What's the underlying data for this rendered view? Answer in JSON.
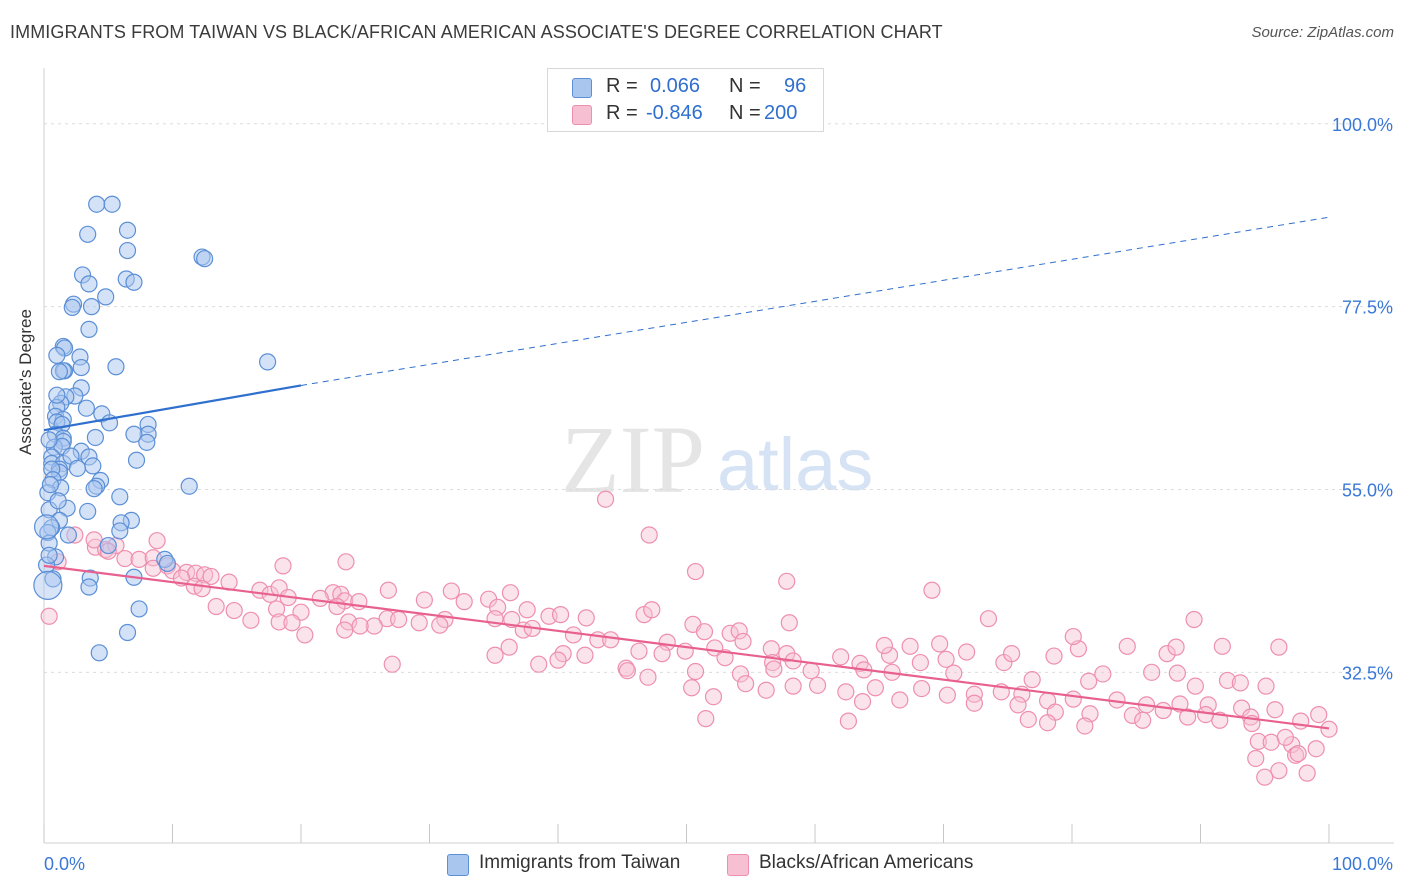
{
  "title": "IMMIGRANTS FROM TAIWAN VS BLACK/AFRICAN AMERICAN ASSOCIATE'S DEGREE CORRELATION CHART",
  "source": "Source: ZipAtlas.com",
  "watermark": {
    "zip": "ZIP",
    "atlas": "atlas"
  },
  "legend": {
    "rows": [
      {
        "r_label": "R =",
        "r_value": "0.066",
        "n_label": "N =",
        "n_value": "96"
      },
      {
        "r_label": "R =",
        "r_value": "-0.846",
        "n_label": "N =",
        "n_value": "200"
      }
    ]
  },
  "bottom_legend": {
    "taiwan": "Immigrants from Taiwan",
    "black": "Blacks/African Americans"
  },
  "colors": {
    "taiwan_fill": "#a9c6ef",
    "taiwan_stroke": "#5b8fd6",
    "taiwan_line": "#2f6fce",
    "black_fill": "#f7c0d2",
    "black_stroke": "#ee8fae",
    "black_line": "#e8608f",
    "axis_label": "#3a78d6",
    "grid": "#dcdcdc"
  },
  "chart_data": {
    "type": "scatter",
    "title": "IMMIGRANTS FROM TAIWAN VS BLACK/AFRICAN AMERICAN ASSOCIATE'S DEGREE CORRELATION CHART",
    "xlabel": "",
    "ylabel": "Associate's Degree",
    "xlim": [
      0,
      100
    ],
    "ylim": [
      11.5,
      106
    ],
    "x_tick_labels": [
      "0.0%",
      "100.0%"
    ],
    "y_ticks": [
      32.5,
      55.0,
      77.5,
      100.0
    ],
    "y_tick_labels": [
      "32.5%",
      "55.0%",
      "77.5%",
      "100.0%"
    ],
    "grid": true,
    "series": [
      {
        "name": "Immigrants from Taiwan",
        "R": 0.066,
        "N": 96,
        "trend": {
          "x0": 0,
          "y0": 62.3,
          "x1": 20,
          "y1": 67.8,
          "dash_x1": 100,
          "dash_y1": 88.5
        },
        "points": [
          [
            4.1,
            90.1
          ],
          [
            5.3,
            90.1
          ],
          [
            3.4,
            86.4
          ],
          [
            6.5,
            86.9
          ],
          [
            6.5,
            84.4
          ],
          [
            12.3,
            83.6
          ],
          [
            12.5,
            83.4
          ],
          [
            3.0,
            81.4
          ],
          [
            6.4,
            80.9
          ],
          [
            7.0,
            80.5
          ],
          [
            3.5,
            80.3
          ],
          [
            4.8,
            78.7
          ],
          [
            2.3,
            77.8
          ],
          [
            2.2,
            77.4
          ],
          [
            3.7,
            77.5
          ],
          [
            3.5,
            74.7
          ],
          [
            17.4,
            70.7
          ],
          [
            1.5,
            72.6
          ],
          [
            1.6,
            72.4
          ],
          [
            2.8,
            71.3
          ],
          [
            1.0,
            71.5
          ],
          [
            2.9,
            70.0
          ],
          [
            5.6,
            70.1
          ],
          [
            1.6,
            69.6
          ],
          [
            1.5,
            69.6
          ],
          [
            1.2,
            69.5
          ],
          [
            2.9,
            67.5
          ],
          [
            2.4,
            66.5
          ],
          [
            1.7,
            66.4
          ],
          [
            1.3,
            65.6
          ],
          [
            1.0,
            65.1
          ],
          [
            1.0,
            66.6
          ],
          [
            3.3,
            65.0
          ],
          [
            0.9,
            64.0
          ],
          [
            4.5,
            64.3
          ],
          [
            1.5,
            63.6
          ],
          [
            1.0,
            63.3
          ],
          [
            1.4,
            63.0
          ],
          [
            5.1,
            63.2
          ],
          [
            8.1,
            63.0
          ],
          [
            8.1,
            61.8
          ],
          [
            7.0,
            61.8
          ],
          [
            0.9,
            61.8
          ],
          [
            1.5,
            61.3
          ],
          [
            1.5,
            60.9
          ],
          [
            0.8,
            60.2
          ],
          [
            1.4,
            60.3
          ],
          [
            2.9,
            59.7
          ],
          [
            3.5,
            59.0
          ],
          [
            0.6,
            59.0
          ],
          [
            7.2,
            58.6
          ],
          [
            0.6,
            58.2
          ],
          [
            1.5,
            58.2
          ],
          [
            1.2,
            57.5
          ],
          [
            1.2,
            57.1
          ],
          [
            0.6,
            57.5
          ],
          [
            3.8,
            57.9
          ],
          [
            0.7,
            56.2
          ],
          [
            4.4,
            56.1
          ],
          [
            4.1,
            55.4
          ],
          [
            1.3,
            55.2
          ],
          [
            11.3,
            55.4
          ],
          [
            3.9,
            55.1
          ],
          [
            1.8,
            52.7
          ],
          [
            0.4,
            52.5
          ],
          [
            3.4,
            52.3
          ],
          [
            6.8,
            51.2
          ],
          [
            1.2,
            51.2
          ],
          [
            6.0,
            50.9
          ],
          [
            0.6,
            50.3
          ],
          [
            5.9,
            49.9
          ],
          [
            0.3,
            49.7
          ],
          [
            1.9,
            49.4
          ],
          [
            5.0,
            48.1
          ],
          [
            0.4,
            48.4
          ],
          [
            9.4,
            46.4
          ],
          [
            0.9,
            46.7
          ],
          [
            9.6,
            45.9
          ],
          [
            0.2,
            45.7
          ],
          [
            7.0,
            44.2
          ],
          [
            3.6,
            44.1
          ],
          [
            0.7,
            44.0
          ],
          [
            3.5,
            43.0
          ],
          [
            7.4,
            40.3
          ],
          [
            6.5,
            37.4
          ],
          [
            4.3,
            34.9
          ],
          [
            0.4,
            46.9
          ],
          [
            0.3,
            54.6
          ],
          [
            0.5,
            55.6
          ],
          [
            2.1,
            59.1
          ],
          [
            4.0,
            61.4
          ],
          [
            2.6,
            57.6
          ],
          [
            1.1,
            53.6
          ],
          [
            5.9,
            54.1
          ],
          [
            8.0,
            60.8
          ],
          [
            0.4,
            61.1
          ]
        ]
      },
      {
        "name": "Blacks/African Americans",
        "R": -0.846,
        "N": 200,
        "trend": {
          "x0": 0,
          "y0": 45.6,
          "x1": 100,
          "y1": 25.6
        },
        "points": [
          [
            1.1,
            46.1
          ],
          [
            4.0,
            47.9
          ],
          [
            4.8,
            47.6
          ],
          [
            5.6,
            48.1
          ],
          [
            3.9,
            48.8
          ],
          [
            2.4,
            49.4
          ],
          [
            8.8,
            48.7
          ],
          [
            5.0,
            47.4
          ],
          [
            6.3,
            46.5
          ],
          [
            7.4,
            46.4
          ],
          [
            8.5,
            46.6
          ],
          [
            9.6,
            45.6
          ],
          [
            8.5,
            45.3
          ],
          [
            10.0,
            45.0
          ],
          [
            11.1,
            44.8
          ],
          [
            11.8,
            44.7
          ],
          [
            10.7,
            44.1
          ],
          [
            12.5,
            44.5
          ],
          [
            13.0,
            44.3
          ],
          [
            14.4,
            43.6
          ],
          [
            18.6,
            45.6
          ],
          [
            23.5,
            46.1
          ],
          [
            11.7,
            43.1
          ],
          [
            12.3,
            42.8
          ],
          [
            16.8,
            42.6
          ],
          [
            17.6,
            42.1
          ],
          [
            18.3,
            42.9
          ],
          [
            22.5,
            42.3
          ],
          [
            23.1,
            42.1
          ],
          [
            26.8,
            42.6
          ],
          [
            19.0,
            41.7
          ],
          [
            21.5,
            41.6
          ],
          [
            23.4,
            41.3
          ],
          [
            24.5,
            41.2
          ],
          [
            31.7,
            42.5
          ],
          [
            36.3,
            42.3
          ],
          [
            34.6,
            41.5
          ],
          [
            13.4,
            40.6
          ],
          [
            14.8,
            40.1
          ],
          [
            18.1,
            40.3
          ],
          [
            20.0,
            39.9
          ],
          [
            22.8,
            40.6
          ],
          [
            29.6,
            41.4
          ],
          [
            32.7,
            41.2
          ],
          [
            35.3,
            40.5
          ],
          [
            37.6,
            40.2
          ],
          [
            0.4,
            39.4
          ],
          [
            16.1,
            38.9
          ],
          [
            18.3,
            38.7
          ],
          [
            19.3,
            38.6
          ],
          [
            23.7,
            38.7
          ],
          [
            26.7,
            39.1
          ],
          [
            25.7,
            38.2
          ],
          [
            27.6,
            39.0
          ],
          [
            29.2,
            38.6
          ],
          [
            31.2,
            39.0
          ],
          [
            35.1,
            39.1
          ],
          [
            36.4,
            39.0
          ],
          [
            39.3,
            39.4
          ],
          [
            40.2,
            39.6
          ],
          [
            42.2,
            39.2
          ],
          [
            46.7,
            39.6
          ],
          [
            47.3,
            40.2
          ],
          [
            50.5,
            38.4
          ],
          [
            20.3,
            37.1
          ],
          [
            23.4,
            37.7
          ],
          [
            24.6,
            38.2
          ],
          [
            30.8,
            38.3
          ],
          [
            37.3,
            37.7
          ],
          [
            38.0,
            37.9
          ],
          [
            41.2,
            37.1
          ],
          [
            43.1,
            36.5
          ],
          [
            44.1,
            36.5
          ],
          [
            48.5,
            36.2
          ],
          [
            51.4,
            37.5
          ],
          [
            53.4,
            37.3
          ],
          [
            54.1,
            37.6
          ],
          [
            58.0,
            38.6
          ],
          [
            52.2,
            35.5
          ],
          [
            54.4,
            36.3
          ],
          [
            56.6,
            35.4
          ],
          [
            57.8,
            34.8
          ],
          [
            62.0,
            34.4
          ],
          [
            67.4,
            35.7
          ],
          [
            69.7,
            36.0
          ],
          [
            70.2,
            34.1
          ],
          [
            35.1,
            34.6
          ],
          [
            36.2,
            35.6
          ],
          [
            40.4,
            34.8
          ],
          [
            42.1,
            34.6
          ],
          [
            46.3,
            35.1
          ],
          [
            48.1,
            34.8
          ],
          [
            49.9,
            35.1
          ],
          [
            53.0,
            34.3
          ],
          [
            56.7,
            33.7
          ],
          [
            58.3,
            33.9
          ],
          [
            63.5,
            33.6
          ],
          [
            65.8,
            34.6
          ],
          [
            68.2,
            33.7
          ],
          [
            71.8,
            35.0
          ],
          [
            74.7,
            33.7
          ],
          [
            75.3,
            34.8
          ],
          [
            78.6,
            34.5
          ],
          [
            80.5,
            35.4
          ],
          [
            84.3,
            35.7
          ],
          [
            87.4,
            34.8
          ],
          [
            91.7,
            35.7
          ],
          [
            96.1,
            35.6
          ],
          [
            27.1,
            33.5
          ],
          [
            38.5,
            33.5
          ],
          [
            40.0,
            34.0
          ],
          [
            45.3,
            33.0
          ],
          [
            45.4,
            32.7
          ],
          [
            50.7,
            32.6
          ],
          [
            54.2,
            32.3
          ],
          [
            56.8,
            32.9
          ],
          [
            59.7,
            32.7
          ],
          [
            63.8,
            32.8
          ],
          [
            66.0,
            32.5
          ],
          [
            70.8,
            32.4
          ],
          [
            76.9,
            31.6
          ],
          [
            81.3,
            31.4
          ],
          [
            82.4,
            32.3
          ],
          [
            86.2,
            32.5
          ],
          [
            88.2,
            32.4
          ],
          [
            89.6,
            30.8
          ],
          [
            92.1,
            31.5
          ],
          [
            93.1,
            31.2
          ],
          [
            95.1,
            30.8
          ],
          [
            47.0,
            31.9
          ],
          [
            50.4,
            30.6
          ],
          [
            54.6,
            31.1
          ],
          [
            56.2,
            30.3
          ],
          [
            60.2,
            30.9
          ],
          [
            62.4,
            30.1
          ],
          [
            64.7,
            30.6
          ],
          [
            68.3,
            30.5
          ],
          [
            70.3,
            29.7
          ],
          [
            72.4,
            29.8
          ],
          [
            74.5,
            30.1
          ],
          [
            76.1,
            29.8
          ],
          [
            78.1,
            29.0
          ],
          [
            80.1,
            29.2
          ],
          [
            83.5,
            29.1
          ],
          [
            85.8,
            28.5
          ],
          [
            88.4,
            28.6
          ],
          [
            90.6,
            28.5
          ],
          [
            93.2,
            28.1
          ],
          [
            95.8,
            27.9
          ],
          [
            99.2,
            27.3
          ],
          [
            52.1,
            29.5
          ],
          [
            58.3,
            30.8
          ],
          [
            63.7,
            28.9
          ],
          [
            66.6,
            29.1
          ],
          [
            72.4,
            28.7
          ],
          [
            75.8,
            28.5
          ],
          [
            78.7,
            27.6
          ],
          [
            81.4,
            27.4
          ],
          [
            84.7,
            27.2
          ],
          [
            87.1,
            27.8
          ],
          [
            90.4,
            27.3
          ],
          [
            91.5,
            26.6
          ],
          [
            93.9,
            27.0
          ],
          [
            97.8,
            26.5
          ],
          [
            100.0,
            25.5
          ],
          [
            51.5,
            26.8
          ],
          [
            62.6,
            26.5
          ],
          [
            76.6,
            26.7
          ],
          [
            78.1,
            26.3
          ],
          [
            81.0,
            25.9
          ],
          [
            85.5,
            26.6
          ],
          [
            89.0,
            27.0
          ],
          [
            94.0,
            26.2
          ],
          [
            97.1,
            23.6
          ],
          [
            99.0,
            23.1
          ],
          [
            94.5,
            24.0
          ],
          [
            95.5,
            23.9
          ],
          [
            96.6,
            24.5
          ],
          [
            97.4,
            22.3
          ],
          [
            94.3,
            21.9
          ],
          [
            97.6,
            22.5
          ],
          [
            98.3,
            20.1
          ],
          [
            96.1,
            20.4
          ],
          [
            95.0,
            19.6
          ],
          [
            43.7,
            53.8
          ],
          [
            47.1,
            49.4
          ],
          [
            50.7,
            44.9
          ],
          [
            57.8,
            43.7
          ],
          [
            69.1,
            42.6
          ],
          [
            73.5,
            39.1
          ],
          [
            80.1,
            36.9
          ],
          [
            89.5,
            39.0
          ],
          [
            88.1,
            35.6
          ],
          [
            65.4,
            35.8
          ]
        ]
      }
    ]
  }
}
